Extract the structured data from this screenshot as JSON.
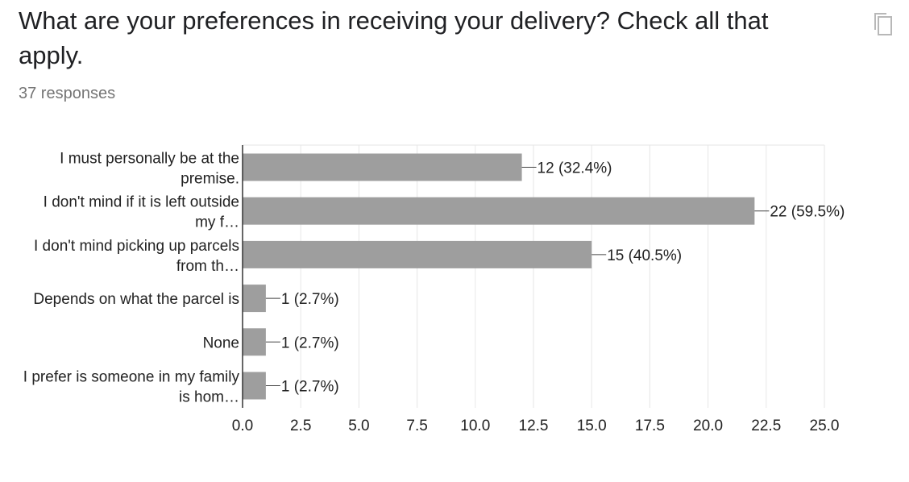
{
  "question": {
    "title": "What are your preferences in receiving your delivery? Check all that apply.",
    "responses": "37 responses"
  },
  "icons": {
    "copy": "copy-icon"
  },
  "colors": {
    "bar": "#9e9e9e",
    "grid": "#e6e6e6",
    "axis": "#333333",
    "muted_text": "#757575"
  },
  "chart_data": {
    "type": "bar",
    "orientation": "horizontal",
    "categories": [
      [
        "I must personally be at the",
        "premise."
      ],
      [
        "I don't mind if it is left outside",
        "my f…"
      ],
      [
        "I don't mind picking up parcels",
        "from th…"
      ],
      [
        "Depends on what the parcel is"
      ],
      [
        "None"
      ],
      [
        "I prefer is someone in my family",
        "is hom…"
      ]
    ],
    "values": [
      12,
      22,
      15,
      1,
      1,
      1
    ],
    "data_labels": [
      "12 (32.4%)",
      "22 (59.5%)",
      "15 (40.5%)",
      "1 (2.7%)",
      "1 (2.7%)",
      "1 (2.7%)"
    ],
    "xlim": [
      0,
      25
    ],
    "xticks": [
      "0.0",
      "2.5",
      "5.0",
      "7.5",
      "10.0",
      "12.5",
      "15.0",
      "17.5",
      "20.0",
      "22.5",
      "25.0"
    ],
    "grid": true
  }
}
